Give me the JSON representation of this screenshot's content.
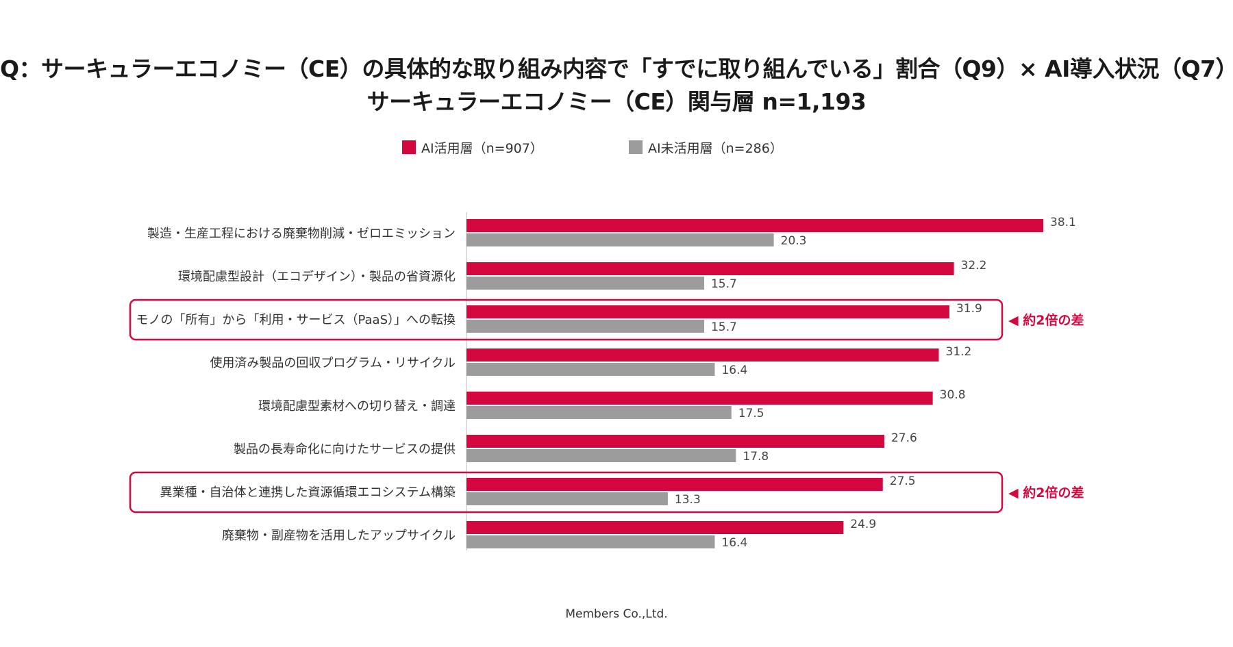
{
  "title_line1": "Q：サーキュラーエコノミー（CE）の具体的な取り組み内容で「すでに取り組んでいる」割合（Q9）× AI導入状況（Q7）",
  "title_line2": "サーキュラーエコノミー（CE）関与層 n=1,193",
  "footer": "Members Co.,Ltd.",
  "colors": {
    "ai": "#d5073f",
    "non_ai": "#9c9c9c",
    "highlight": "#d5073f"
  },
  "chart_data": {
    "type": "bar",
    "orientation": "horizontal",
    "categories": [
      "製造・生産工程における廃棄物削減・ゼロエミッション",
      "環境配慮型設計（エコデザイン）・製品の省資源化",
      "モノの「所有」から「利用・サービス（PaaS）」への転換",
      "使用済み製品の回収プログラム・リサイクル",
      "環境配慮型素材への切り替え・調達",
      "製品の長寿命化に向けたサービスの提供",
      "異業種・自治体と連携した資源循環エコシステム構築",
      "廃棄物・副産物を活用したアップサイクル"
    ],
    "series": [
      {
        "name": "AI活用層（n=907）",
        "color": "#d5073f",
        "values": [
          38.1,
          32.2,
          31.9,
          31.2,
          30.8,
          27.6,
          27.5,
          24.9
        ]
      },
      {
        "name": "AI未活用層（n=286）",
        "color": "#9c9c9c",
        "values": [
          20.3,
          15.7,
          15.7,
          16.4,
          17.5,
          17.8,
          13.3,
          16.4
        ]
      }
    ],
    "xlim": [
      0,
      40
    ],
    "highlights": [
      {
        "category_index": 2,
        "annotation": "◀ 約2倍の差"
      },
      {
        "category_index": 6,
        "annotation": "◀ 約2倍の差"
      }
    ],
    "legend_position": "top"
  }
}
